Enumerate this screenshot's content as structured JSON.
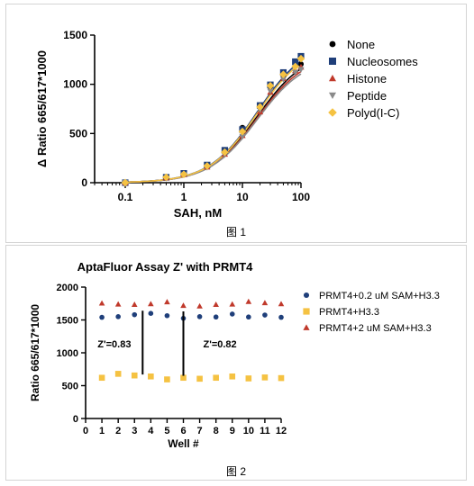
{
  "caption1": "图 1",
  "caption2": "图 2",
  "chart_data": [
    {
      "type": "scatter",
      "title": "",
      "xlabel": "SAH, nM",
      "ylabel": "Δ Ratio 665/617*1000",
      "xscale": "log",
      "xlim": [
        0.03,
        100
      ],
      "ylim": [
        0,
        1500
      ],
      "xticks": [
        "0.1",
        "1",
        "10",
        "100"
      ],
      "yticks": [
        "0",
        "500",
        "1000",
        "1500"
      ],
      "legend_position": "right",
      "fit": "sigmoidal dose-response curves",
      "series": [
        {
          "name": "None",
          "marker": "circle",
          "color": "#000000",
          "x": [
            0.1,
            0.5,
            1,
            2.5,
            5,
            10,
            20,
            30,
            50,
            80,
            100
          ],
          "y": [
            0,
            60,
            95,
            175,
            305,
            560,
            785,
            975,
            1090,
            1190,
            1205
          ]
        },
        {
          "name": "Nucleosomes",
          "marker": "square",
          "color": "#1f3f7a",
          "x": [
            0.1,
            0.5,
            1,
            2.5,
            5,
            10,
            20,
            30,
            50,
            80,
            100
          ],
          "y": [
            0,
            55,
            95,
            180,
            330,
            540,
            785,
            995,
            1120,
            1230,
            1285
          ]
        },
        {
          "name": "Histone",
          "marker": "triangle-up",
          "color": "#c0392b",
          "x": [
            0.1,
            0.5,
            1,
            2.5,
            5,
            10,
            20,
            30,
            50,
            80,
            100
          ],
          "y": [
            0,
            50,
            85,
            160,
            290,
            480,
            720,
            920,
            1060,
            1140,
            1175
          ]
        },
        {
          "name": "Peptide",
          "marker": "triangle-down",
          "color": "#8a8a8a",
          "x": [
            0.1,
            0.5,
            1,
            2.5,
            5,
            10,
            20,
            30,
            50,
            80,
            100
          ],
          "y": [
            0,
            45,
            80,
            155,
            285,
            470,
            740,
            930,
            1050,
            1120,
            1150
          ]
        },
        {
          "name": "Polyd(I-C)",
          "marker": "diamond",
          "color": "#f5c242",
          "x": [
            0.1,
            0.5,
            1,
            2.5,
            5,
            10,
            20,
            30,
            50,
            80,
            100
          ],
          "y": [
            0,
            55,
            85,
            170,
            310,
            520,
            770,
            985,
            1100,
            1180,
            1260
          ]
        }
      ]
    },
    {
      "type": "scatter",
      "title": "AptaFluor Assay Z' with PRMT4",
      "xlabel": "Well #",
      "ylabel": "Ratio 665/617*1000",
      "xlim": [
        0,
        12
      ],
      "ylim": [
        0,
        2000
      ],
      "xticks": [
        "0",
        "1",
        "2",
        "3",
        "4",
        "5",
        "6",
        "7",
        "8",
        "9",
        "10",
        "11",
        "12"
      ],
      "yticks": [
        "0",
        "500",
        "1000",
        "1500",
        "2000"
      ],
      "legend_position": "right",
      "x": [
        1,
        2,
        3,
        4,
        5,
        6,
        7,
        8,
        9,
        10,
        11,
        12
      ],
      "series": [
        {
          "name": "PRMT4+0.2 uM SAM+H3.3",
          "marker": "circle",
          "color": "#1f3f7a",
          "values": [
            1540,
            1550,
            1580,
            1600,
            1565,
            1525,
            1550,
            1545,
            1590,
            1545,
            1575,
            1540
          ]
        },
        {
          "name": "PRMT4+H3.3",
          "marker": "square",
          "color": "#f5c242",
          "values": [
            620,
            680,
            655,
            640,
            595,
            620,
            605,
            620,
            640,
            610,
            625,
            615
          ]
        },
        {
          "name": "PRMT4+2 uM SAM+H3.3",
          "marker": "triangle-up",
          "color": "#c0392b",
          "values": [
            1755,
            1740,
            1735,
            1745,
            1775,
            1720,
            1710,
            1735,
            1740,
            1780,
            1760,
            1745
          ]
        }
      ],
      "annotations": [
        {
          "text": "Z'=0.83",
          "line_x": 3.5,
          "line_from": 670,
          "line_to": 1640
        },
        {
          "text": "Z'=0.82",
          "line_x": 6,
          "line_from": 650,
          "line_to": 1630
        }
      ]
    }
  ]
}
